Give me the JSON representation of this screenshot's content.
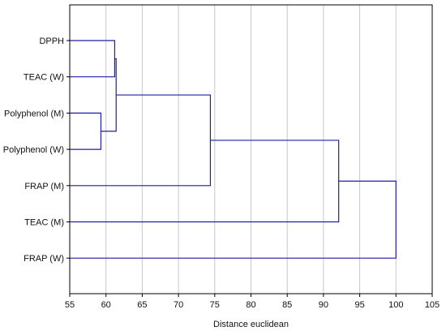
{
  "chart_data": {
    "type": "dendrogram",
    "orientation": "horizontal",
    "xlabel": "Distance euclidean",
    "xlim": [
      55,
      105
    ],
    "xticks": [
      55,
      60,
      65,
      70,
      75,
      80,
      85,
      90,
      95,
      100,
      105
    ],
    "grid": "vertical",
    "line_color": "#1f1fa8",
    "leaves": [
      "DPPH",
      "TEAC (W)",
      "Polyphenol (M)",
      "Polyphenol (W)",
      "FRAP (M)",
      "TEAC (M)",
      "FRAP (W)"
    ],
    "merges": [
      {
        "a": "Polyphenol (M)",
        "b": "Polyphenol (W)",
        "distance": 59.3
      },
      {
        "a": "DPPH",
        "b": "TEAC (W)",
        "distance": 61.2
      },
      {
        "a": "merge-1",
        "b": "merge-2",
        "distance": 61.4
      },
      {
        "a": "merge-3",
        "b": "FRAP (M)",
        "distance": 74.4
      },
      {
        "a": "merge-4",
        "b": "TEAC (M)",
        "distance": 92.1
      },
      {
        "a": "merge-5",
        "b": "FRAP (W)",
        "distance": 100.0
      }
    ]
  }
}
